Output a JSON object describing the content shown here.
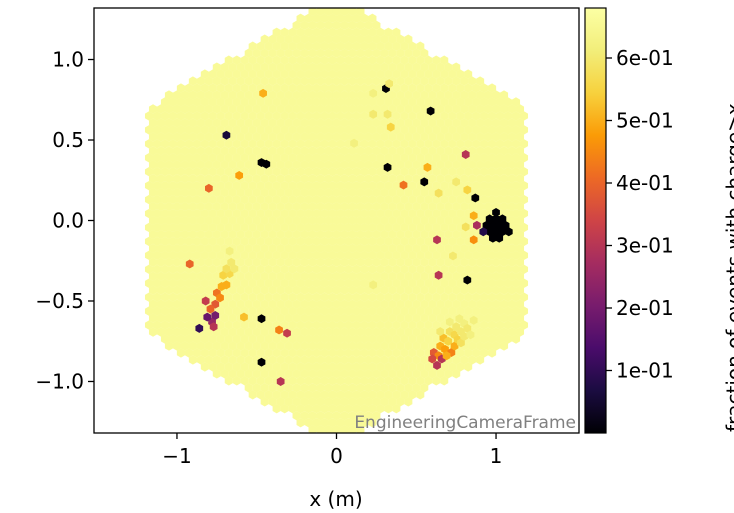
{
  "chart_data": {
    "type": "heatmap",
    "subtype": "hexagonal camera image",
    "title": "",
    "xlabel": "x  (m)",
    "ylabel": "",
    "xlim": [
      -1.52,
      1.52
    ],
    "ylim": [
      -1.32,
      1.32
    ],
    "x_ticks": [
      {
        "value": -1,
        "label": "−1"
      },
      {
        "value": 0,
        "label": "0"
      },
      {
        "value": 1,
        "label": "1"
      }
    ],
    "y_ticks": [
      {
        "value": 1.0,
        "label": "1.0"
      },
      {
        "value": 0.5,
        "label": "0.5"
      },
      {
        "value": 0.0,
        "label": "0.0"
      },
      {
        "value": -0.5,
        "label": "−0.5"
      },
      {
        "value": -1.0,
        "label": "−1.0"
      }
    ],
    "frame_label": "EngineeringCameraFrame",
    "camera_radius_m": 1.2,
    "pixel_pitch_m": 0.05,
    "background_value": 0.66,
    "colormap": "inferno",
    "colorbar": {
      "label": "fraction of events with charge>x",
      "vmin": 0.0,
      "vmax": 0.68,
      "ticks": [
        {
          "value": 0.1,
          "label": "1e-01"
        },
        {
          "value": 0.2,
          "label": "2e-01"
        },
        {
          "value": 0.3,
          "label": "3e-01"
        },
        {
          "value": 0.4,
          "label": "4e-01"
        },
        {
          "value": 0.5,
          "label": "5e-01"
        },
        {
          "value": 0.6,
          "label": "6e-01"
        }
      ]
    },
    "pixels": [
      {
        "x": 0.98,
        "y": -0.03,
        "v": 0.0
      },
      {
        "x": 1.0,
        "y": -0.07,
        "v": 0.0
      },
      {
        "x": 1.02,
        "y": -0.03,
        "v": 0.0
      },
      {
        "x": 0.96,
        "y": -0.07,
        "v": 0.0
      },
      {
        "x": 1.04,
        "y": -0.07,
        "v": 0.0
      },
      {
        "x": 1.0,
        "y": 0.01,
        "v": 0.0
      },
      {
        "x": 1.06,
        "y": -0.03,
        "v": 0.0
      },
      {
        "x": 0.94,
        "y": -0.03,
        "v": 0.0
      },
      {
        "x": 1.08,
        "y": -0.07,
        "v": 0.0
      },
      {
        "x": 1.02,
        "y": -0.11,
        "v": 0.0
      },
      {
        "x": 0.98,
        "y": -0.11,
        "v": 0.0
      },
      {
        "x": 1.04,
        "y": 0.01,
        "v": 0.0
      },
      {
        "x": 0.96,
        "y": 0.01,
        "v": 0.0
      },
      {
        "x": 1.0,
        "y": 0.05,
        "v": 0.0
      },
      {
        "x": 0.92,
        "y": -0.07,
        "v": 0.08
      },
      {
        "x": 0.88,
        "y": -0.03,
        "v": 0.28
      },
      {
        "x": 0.86,
        "y": -0.12,
        "v": 0.46
      },
      {
        "x": 0.86,
        "y": 0.03,
        "v": 0.5
      },
      {
        "x": 0.87,
        "y": 0.14,
        "v": 0.0
      },
      {
        "x": 0.82,
        "y": 0.19,
        "v": 0.55
      },
      {
        "x": 0.81,
        "y": -0.04,
        "v": 0.58
      },
      {
        "x": 0.55,
        "y": 0.24,
        "v": 0.0
      },
      {
        "x": 0.57,
        "y": 0.33,
        "v": 0.5
      },
      {
        "x": 0.42,
        "y": 0.22,
        "v": 0.42
      },
      {
        "x": 0.64,
        "y": 0.17,
        "v": 0.58
      },
      {
        "x": 0.75,
        "y": 0.24,
        "v": 0.6
      },
      {
        "x": 0.81,
        "y": 0.41,
        "v": 0.3
      },
      {
        "x": 0.73,
        "y": -0.22,
        "v": 0.6
      },
      {
        "x": 0.63,
        "y": -0.12,
        "v": 0.3
      },
      {
        "x": 0.64,
        "y": -0.34,
        "v": 0.3
      },
      {
        "x": 0.32,
        "y": 0.33,
        "v": 0.0
      },
      {
        "x": 0.23,
        "y": -0.4,
        "v": 0.62
      },
      {
        "x": 0.82,
        "y": -0.37,
        "v": 0.0
      },
      {
        "x": 0.31,
        "y": 0.82,
        "v": 0.0
      },
      {
        "x": 0.23,
        "y": 0.79,
        "v": 0.62
      },
      {
        "x": 0.32,
        "y": 0.66,
        "v": 0.6
      },
      {
        "x": 0.23,
        "y": 0.66,
        "v": 0.6
      },
      {
        "x": 0.34,
        "y": 0.58,
        "v": 0.55
      },
      {
        "x": 0.59,
        "y": 0.68,
        "v": 0.0
      },
      {
        "x": 0.33,
        "y": 0.85,
        "v": 0.6
      },
      {
        "x": 0.11,
        "y": 0.48,
        "v": 0.62
      },
      {
        "x": -0.46,
        "y": 0.79,
        "v": 0.5
      },
      {
        "x": -0.69,
        "y": 0.53,
        "v": 0.06
      },
      {
        "x": -0.47,
        "y": 0.36,
        "v": 0.0
      },
      {
        "x": -0.44,
        "y": 0.35,
        "v": 0.0
      },
      {
        "x": -0.61,
        "y": 0.28,
        "v": 0.48
      },
      {
        "x": -0.8,
        "y": 0.2,
        "v": 0.4
      },
      {
        "x": -0.92,
        "y": -0.27,
        "v": 0.4
      },
      {
        "x": -0.47,
        "y": -0.61,
        "v": 0.0
      },
      {
        "x": -0.58,
        "y": -0.6,
        "v": 0.52
      },
      {
        "x": -0.36,
        "y": -0.68,
        "v": 0.44
      },
      {
        "x": -0.31,
        "y": -0.7,
        "v": 0.32
      },
      {
        "x": -0.47,
        "y": -0.88,
        "v": 0.0
      },
      {
        "x": -0.35,
        "y": -1.0,
        "v": 0.3
      },
      {
        "x": -0.86,
        "y": -0.67,
        "v": 0.1
      },
      {
        "x": -0.78,
        "y": -0.63,
        "v": 0.25
      },
      {
        "x": -0.81,
        "y": -0.6,
        "v": 0.18
      },
      {
        "x": -0.82,
        "y": -0.5,
        "v": 0.32
      },
      {
        "x": -0.76,
        "y": -0.59,
        "v": 0.2
      },
      {
        "x": -0.76,
        "y": -0.52,
        "v": 0.38
      },
      {
        "x": -0.75,
        "y": -0.45,
        "v": 0.42
      },
      {
        "x": -0.73,
        "y": -0.48,
        "v": 0.45
      },
      {
        "x": -0.72,
        "y": -0.41,
        "v": 0.5
      },
      {
        "x": -0.69,
        "y": -0.4,
        "v": 0.5
      },
      {
        "x": -0.71,
        "y": -0.34,
        "v": 0.55
      },
      {
        "x": -0.67,
        "y": -0.33,
        "v": 0.56
      },
      {
        "x": -0.69,
        "y": -0.3,
        "v": 0.58
      },
      {
        "x": -0.66,
        "y": -0.26,
        "v": 0.6
      },
      {
        "x": -0.64,
        "y": -0.3,
        "v": 0.6
      },
      {
        "x": -0.67,
        "y": -0.19,
        "v": 0.62
      },
      {
        "x": -0.79,
        "y": -0.55,
        "v": 0.4
      },
      {
        "x": -0.77,
        "y": -0.66,
        "v": 0.3
      },
      {
        "x": 0.63,
        "y": -0.9,
        "v": 0.3
      },
      {
        "x": 0.61,
        "y": -0.82,
        "v": 0.38
      },
      {
        "x": 0.64,
        "y": -0.84,
        "v": 0.45
      },
      {
        "x": 0.66,
        "y": -0.86,
        "v": 0.3
      },
      {
        "x": 0.65,
        "y": -0.78,
        "v": 0.5
      },
      {
        "x": 0.68,
        "y": -0.8,
        "v": 0.48
      },
      {
        "x": 0.67,
        "y": -0.73,
        "v": 0.52
      },
      {
        "x": 0.7,
        "y": -0.75,
        "v": 0.55
      },
      {
        "x": 0.72,
        "y": -0.82,
        "v": 0.44
      },
      {
        "x": 0.74,
        "y": -0.78,
        "v": 0.5
      },
      {
        "x": 0.71,
        "y": -0.69,
        "v": 0.58
      },
      {
        "x": 0.74,
        "y": -0.71,
        "v": 0.56
      },
      {
        "x": 0.76,
        "y": -0.74,
        "v": 0.55
      },
      {
        "x": 0.78,
        "y": -0.76,
        "v": 0.58
      },
      {
        "x": 0.75,
        "y": -0.66,
        "v": 0.6
      },
      {
        "x": 0.78,
        "y": -0.69,
        "v": 0.6
      },
      {
        "x": 0.8,
        "y": -0.72,
        "v": 0.6
      },
      {
        "x": 0.8,
        "y": -0.64,
        "v": 0.62
      },
      {
        "x": 0.82,
        "y": -0.67,
        "v": 0.6
      },
      {
        "x": 0.84,
        "y": -0.71,
        "v": 0.62
      },
      {
        "x": 0.77,
        "y": -0.61,
        "v": 0.62
      },
      {
        "x": 0.86,
        "y": -0.62,
        "v": 0.62
      },
      {
        "x": 0.6,
        "y": -0.86,
        "v": 0.35
      },
      {
        "x": 0.69,
        "y": -0.84,
        "v": 0.5
      },
      {
        "x": 0.71,
        "y": -0.63,
        "v": 0.62
      },
      {
        "x": 0.65,
        "y": -0.69,
        "v": 0.6
      }
    ]
  }
}
